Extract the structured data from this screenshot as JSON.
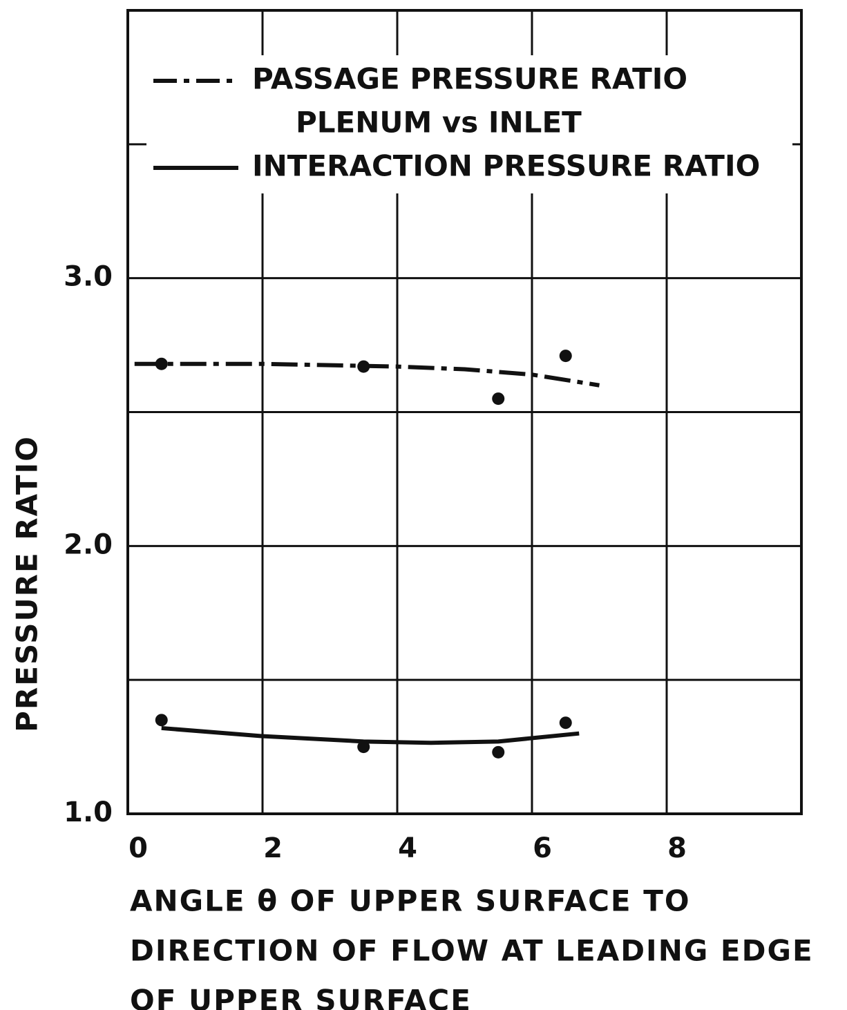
{
  "chart_data": {
    "type": "scatter",
    "xlabel": [
      "ANGLE θ OF UPPER  SURFACE  TO",
      "DIRECTION OF FLOW AT LEADING  EDGE",
      "OF UPPER SURFACE"
    ],
    "ylabel": "PRESSURE RATIO",
    "xlim": [
      0,
      10
    ],
    "ylim": [
      1,
      4
    ],
    "xticks": [
      0,
      2,
      4,
      6,
      8
    ],
    "xgrid": [
      0,
      2,
      4,
      6,
      8,
      10
    ],
    "yticks": [
      {
        "value": 1,
        "label": "1.0"
      },
      {
        "value": 2,
        "label": "2.0"
      },
      {
        "value": 3,
        "label": "3.0"
      }
    ],
    "ygrid": [
      1,
      1.5,
      2,
      2.5,
      3,
      3.5,
      4
    ],
    "grid": true,
    "color": "#111111",
    "series": [
      {
        "name": [
          "PASSAGE PRESSURE RATIO",
          "PLENUM vs INLET"
        ],
        "style": "dash-dot",
        "x": [
          0.5,
          3.5,
          5.5,
          6.5
        ],
        "values": [
          2.68,
          2.67,
          2.55,
          2.71
        ],
        "curve_x": [
          0.1,
          2,
          4,
          5,
          6,
          7
        ],
        "curve_values": [
          2.68,
          2.68,
          2.67,
          2.66,
          2.64,
          2.6
        ]
      },
      {
        "name": [
          "INTERACTION PRESSURE RATIO"
        ],
        "style": "solid",
        "x": [
          0.5,
          3.5,
          5.5,
          6.5
        ],
        "values": [
          1.35,
          1.25,
          1.23,
          1.34
        ],
        "curve_x": [
          0.5,
          2,
          3.5,
          4.5,
          5.5,
          6.7
        ],
        "curve_values": [
          1.32,
          1.29,
          1.27,
          1.265,
          1.27,
          1.3
        ]
      }
    ]
  }
}
